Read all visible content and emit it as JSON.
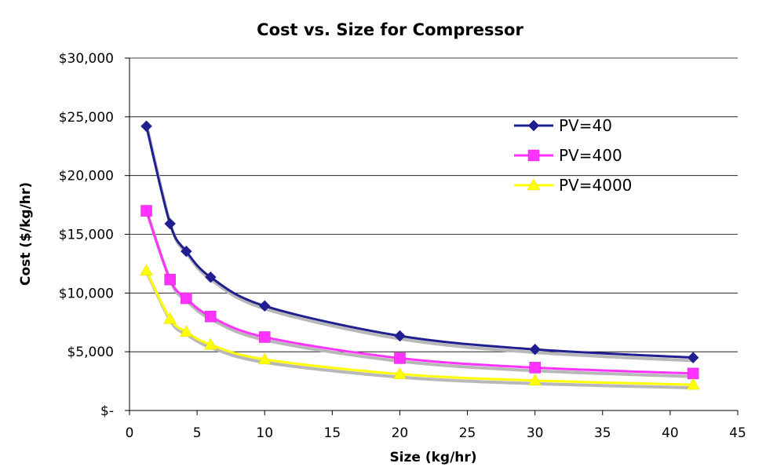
{
  "chart_data": {
    "type": "line",
    "title": "Cost vs. Size for Compressor",
    "xlabel": "Size (kg/hr)",
    "ylabel": "Cost ($/kg/hr)",
    "xlim": [
      0,
      45
    ],
    "ylim": [
      0,
      30000
    ],
    "x_ticks": [
      0,
      5,
      10,
      15,
      20,
      25,
      30,
      35,
      40,
      45
    ],
    "x_tick_labels": [
      "0",
      "5",
      "10",
      "15",
      "20",
      "25",
      "30",
      "35",
      "40",
      "45"
    ],
    "y_ticks": [
      0,
      5000,
      10000,
      15000,
      20000,
      25000,
      30000
    ],
    "y_tick_labels": [
      "$-",
      "$5,000",
      "$10,000",
      "$15,000",
      "$20,000",
      "$25,000",
      "$30,000"
    ],
    "grid": "horizontal",
    "legend_position": "top-right",
    "x": [
      1.25,
      3,
      4.2,
      6,
      10,
      20,
      30,
      41.7
    ],
    "series": [
      {
        "name": "PV=40",
        "marker": "diamond",
        "color": "#1f1f8f",
        "values": [
          24200,
          15900,
          13550,
          11350,
          8900,
          6350,
          5200,
          4500
        ]
      },
      {
        "name": "PV=400",
        "marker": "square",
        "color": "#ff33ff",
        "values": [
          17000,
          11150,
          9550,
          8000,
          6250,
          4450,
          3650,
          3150
        ]
      },
      {
        "name": "PV=4000",
        "marker": "triangle",
        "color": "#ffff00",
        "values": [
          11900,
          7800,
          6700,
          5600,
          4350,
          3100,
          2550,
          2200
        ]
      }
    ]
  }
}
